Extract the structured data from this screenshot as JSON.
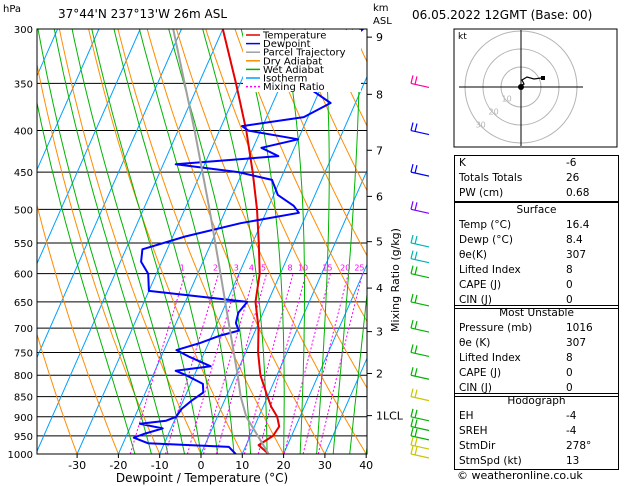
{
  "header": {
    "hpa_label": "hPa",
    "location": "37°44'N  237°13'W  26m  ASL",
    "km_label": "km",
    "asl_label": "ASL",
    "datetime": "06.05.2022  12GMT  (Base: 00)"
  },
  "legend": [
    {
      "label": "Temperature",
      "color": "#e60000",
      "dash": ""
    },
    {
      "label": "Dewpoint",
      "color": "#0000ff",
      "dash": ""
    },
    {
      "label": "Parcel Trajectory",
      "color": "#a0a0a0",
      "dash": ""
    },
    {
      "label": "Dry Adiabat",
      "color": "#ff8c00",
      "dash": ""
    },
    {
      "label": "Wet Adiabat",
      "color": "#00b400",
      "dash": ""
    },
    {
      "label": "Isotherm",
      "color": "#00a0ff",
      "dash": ""
    },
    {
      "label": "Mixing Ratio",
      "color": "#ff00ff",
      "dash": "2,2"
    }
  ],
  "chart_data": {
    "type": "line",
    "xlabel": "Dewpoint / Temperature (°C)",
    "ylabel": "hPa",
    "xlim": [
      -35,
      40
    ],
    "ylim": [
      1000,
      300
    ],
    "pressure_ticks": [
      300,
      350,
      400,
      450,
      500,
      550,
      600,
      650,
      700,
      750,
      800,
      850,
      900,
      950,
      1000
    ],
    "temp_ticks": [
      -30,
      -20,
      -10,
      0,
      10,
      20,
      30,
      40
    ],
    "km_ticks": [
      {
        "label": "9",
        "p": 307
      },
      {
        "label": "8",
        "p": 361
      },
      {
        "label": "7",
        "p": 423
      },
      {
        "label": "6",
        "p": 482
      },
      {
        "label": "5",
        "p": 548
      },
      {
        "label": "4",
        "p": 625
      },
      {
        "label": "3",
        "p": 707
      },
      {
        "label": "2",
        "p": 796
      },
      {
        "label": "1LCL",
        "p": 897
      }
    ],
    "mixing_ratio_axis_label": "Mixing Ratio (g/kg)",
    "mixing_ratio_labels": [
      "1",
      "2",
      "3",
      "4",
      "5",
      "8",
      "10",
      "15",
      "20",
      "25"
    ],
    "mixing_ratio_values": [
      1,
      2,
      3,
      4,
      5,
      8,
      10,
      15,
      20,
      25
    ],
    "series": [
      {
        "name": "Temperature",
        "points": [
          [
            1000,
            16.4
          ],
          [
            975,
            13.0
          ],
          [
            950,
            15.5
          ],
          [
            925,
            16.0
          ],
          [
            900,
            14.5
          ],
          [
            875,
            12.0
          ],
          [
            850,
            10.0
          ],
          [
            800,
            6.0
          ],
          [
            750,
            3.0
          ],
          [
            700,
            0.5
          ],
          [
            650,
            -3.0
          ],
          [
            625,
            -4.0
          ],
          [
            600,
            -5.0
          ],
          [
            550,
            -8.5
          ],
          [
            500,
            -12.5
          ],
          [
            450,
            -17.5
          ],
          [
            400,
            -23.5
          ],
          [
            350,
            -31.0
          ],
          [
            300,
            -40.0
          ]
        ]
      },
      {
        "name": "Dewpoint",
        "points": [
          [
            1000,
            8.4
          ],
          [
            980,
            6.0
          ],
          [
            970,
            -14.0
          ],
          [
            955,
            -18.0
          ],
          [
            945,
            -16.0
          ],
          [
            930,
            -12.0
          ],
          [
            918,
            -18.0
          ],
          [
            910,
            -12.0
          ],
          [
            900,
            -10.0
          ],
          [
            880,
            -9.5
          ],
          [
            860,
            -8.0
          ],
          [
            840,
            -6.0
          ],
          [
            820,
            -7.0
          ],
          [
            800,
            -12.0
          ],
          [
            790,
            -15.0
          ],
          [
            780,
            -7.0
          ],
          [
            760,
            -13.0
          ],
          [
            745,
            -17.0
          ],
          [
            730,
            -12.0
          ],
          [
            715,
            -8.0
          ],
          [
            705,
            -4.0
          ],
          [
            690,
            -5.5
          ],
          [
            670,
            -6.0
          ],
          [
            650,
            -5.0
          ],
          [
            630,
            -30.0
          ],
          [
            600,
            -32.0
          ],
          [
            580,
            -35.0
          ],
          [
            560,
            -36.0
          ],
          [
            540,
            -27.0
          ],
          [
            520,
            -15.0
          ],
          [
            505,
            -2.0
          ],
          [
            495,
            -4.0
          ],
          [
            480,
            -9.0
          ],
          [
            460,
            -12.0
          ],
          [
            450,
            -21.0
          ],
          [
            440,
            -37.0
          ],
          [
            430,
            -13.0
          ],
          [
            420,
            -18.0
          ],
          [
            410,
            -10.0
          ],
          [
            400,
            -23.0
          ],
          [
            395,
            -25.0
          ],
          [
            385,
            -11.0
          ],
          [
            370,
            -6.0
          ],
          [
            350,
            -15.0
          ],
          [
            330,
            -13.0
          ],
          [
            300,
            -6.0
          ]
        ]
      },
      {
        "name": "Parcel Trajectory",
        "points": [
          [
            1000,
            16.4
          ],
          [
            900,
            7.0
          ],
          [
            850,
            3.5
          ],
          [
            800,
            0.5
          ],
          [
            700,
            -6.5
          ],
          [
            600,
            -14.5
          ],
          [
            500,
            -24.0
          ],
          [
            400,
            -36.0
          ],
          [
            300,
            -52.0
          ]
        ]
      }
    ],
    "wind_barbs": [
      {
        "p": 1000,
        "color": "#c8c800"
      },
      {
        "p": 975,
        "color": "#c8c800"
      },
      {
        "p": 950,
        "color": "#00b400"
      },
      {
        "p": 925,
        "color": "#00b400"
      },
      {
        "p": 900,
        "color": "#00b400"
      },
      {
        "p": 850,
        "color": "#c8c800"
      },
      {
        "p": 800,
        "color": "#00b400"
      },
      {
        "p": 750,
        "color": "#00b400"
      },
      {
        "p": 700,
        "color": "#00b400"
      },
      {
        "p": 650,
        "color": "#00b400"
      },
      {
        "p": 600,
        "color": "#00b400"
      },
      {
        "p": 575,
        "color": "#00b4b4"
      },
      {
        "p": 550,
        "color": "#00b4b4"
      },
      {
        "p": 500,
        "color": "#8000ff"
      },
      {
        "p": 450,
        "color": "#0000ff"
      },
      {
        "p": 400,
        "color": "#0000ff"
      },
      {
        "p": 350,
        "color": "#ff00a0"
      }
    ]
  },
  "hodograph": {
    "unit_label": "kt",
    "ring_labels": [
      "10",
      "20",
      "30"
    ]
  },
  "indices": [
    {
      "label": "K",
      "value": "-6"
    },
    {
      "label": "Totals Totals",
      "value": "26"
    },
    {
      "label": "PW (cm)",
      "value": "0.68"
    }
  ],
  "surface": {
    "title": "Surface",
    "rows": [
      {
        "label": "Temp (°C)",
        "value": "16.4"
      },
      {
        "label": "Dewp (°C)",
        "value": "8.4"
      },
      {
        "label": "θe(K)",
        "value": "307"
      },
      {
        "label": "Lifted Index",
        "value": "8"
      },
      {
        "label": "CAPE (J)",
        "value": "0"
      },
      {
        "label": "CIN (J)",
        "value": "0"
      }
    ]
  },
  "most_unstable": {
    "title": "Most Unstable",
    "rows": [
      {
        "label": "Pressure (mb)",
        "value": "1016"
      },
      {
        "label": "θe (K)",
        "value": "307"
      },
      {
        "label": "Lifted Index",
        "value": "8"
      },
      {
        "label": "CAPE (J)",
        "value": "0"
      },
      {
        "label": "CIN (J)",
        "value": "0"
      }
    ]
  },
  "hodograph_table": {
    "title": "Hodograph",
    "rows": [
      {
        "label": "EH",
        "value": "-4"
      },
      {
        "label": "SREH",
        "value": "-4"
      },
      {
        "label": "StmDir",
        "value": "278°"
      },
      {
        "label": "StmSpd (kt)",
        "value": "13"
      }
    ]
  },
  "footer": "© weatheronline.co.uk"
}
